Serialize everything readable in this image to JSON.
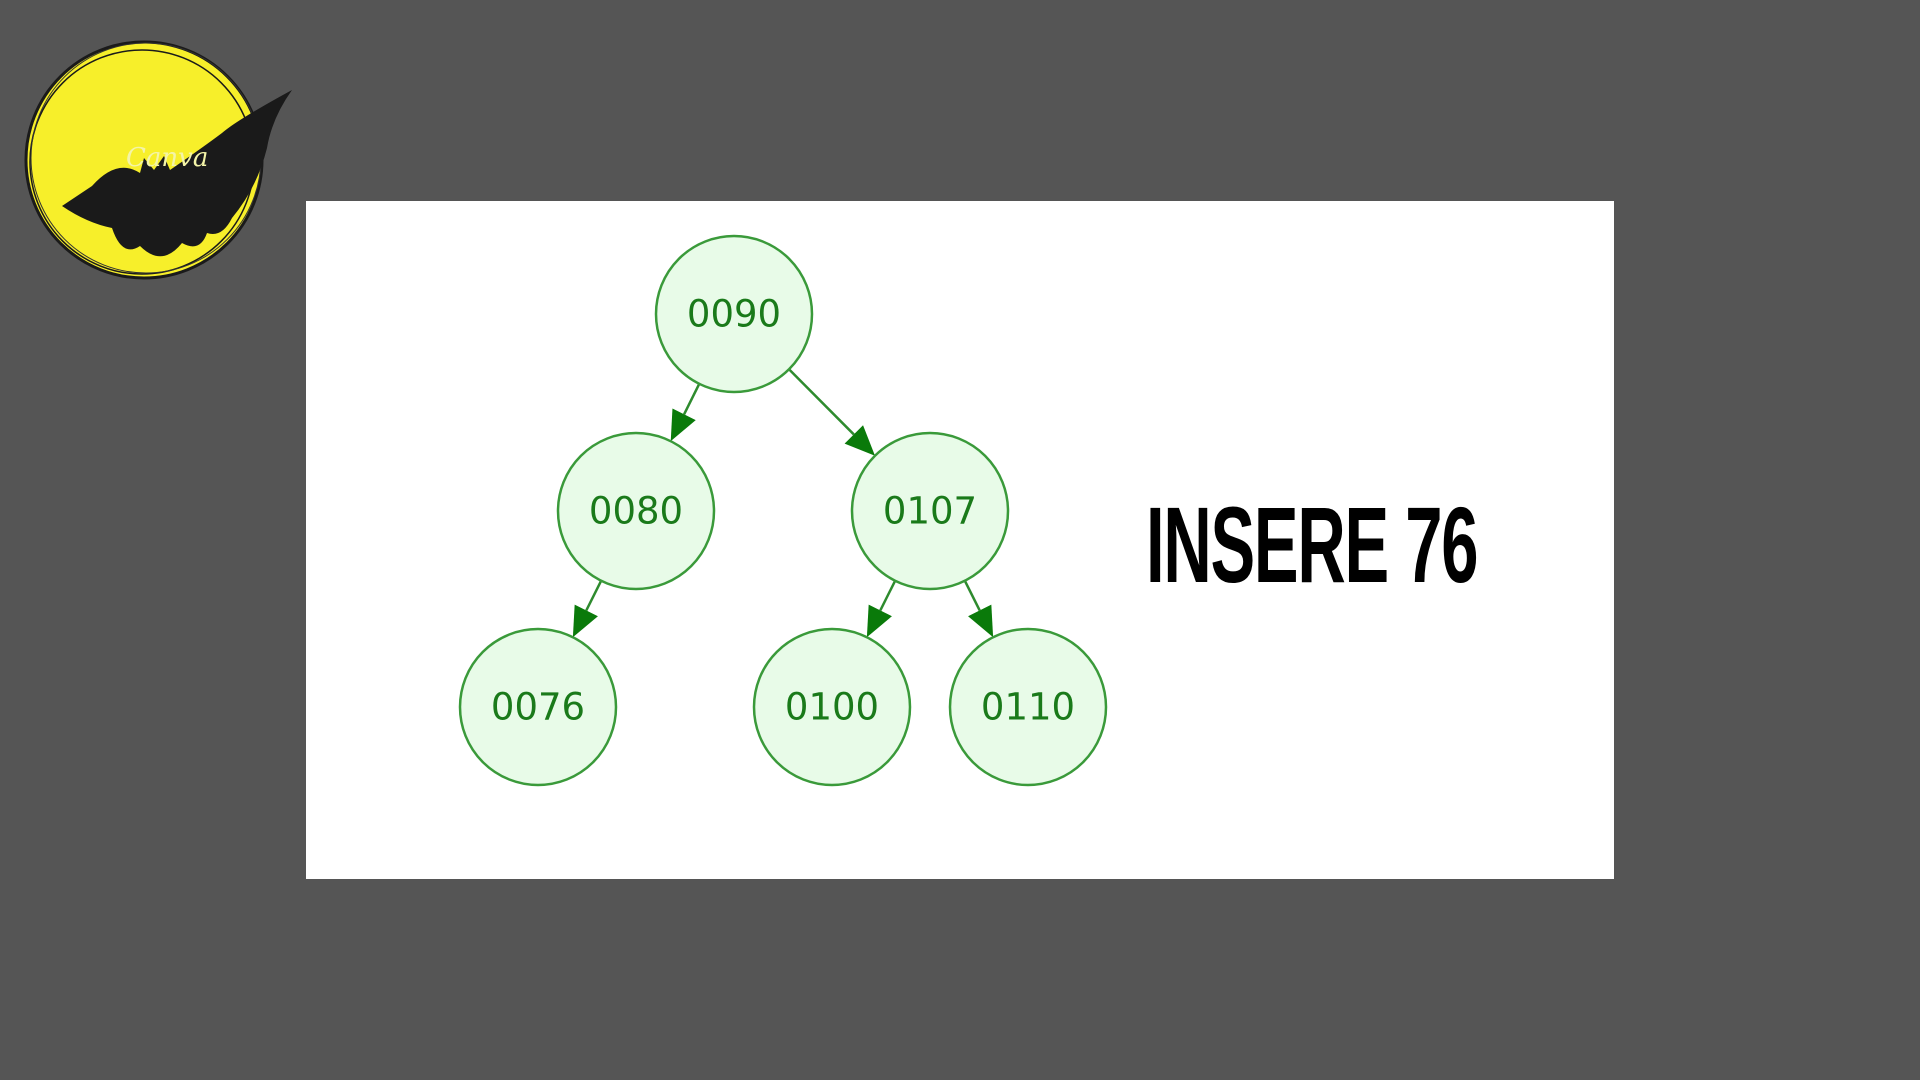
{
  "logo": {
    "text": "Canva",
    "icon": "bat-moon-logo",
    "colors": {
      "moon": "#f7ef2a",
      "bat": "#1a1a1a"
    }
  },
  "diagram": {
    "nodes": [
      {
        "id": "n90",
        "label": "0090"
      },
      {
        "id": "n80",
        "label": "0080"
      },
      {
        "id": "n107",
        "label": "0107"
      },
      {
        "id": "n76",
        "label": "0076"
      },
      {
        "id": "n100",
        "label": "0100"
      },
      {
        "id": "n110",
        "label": "0110"
      }
    ],
    "edges": [
      {
        "from": "n90",
        "to": "n80"
      },
      {
        "from": "n90",
        "to": "n107"
      },
      {
        "from": "n80",
        "to": "n76"
      },
      {
        "from": "n107",
        "to": "n100"
      },
      {
        "from": "n107",
        "to": "n110"
      }
    ],
    "colors": {
      "node_fill": "#e8fbe8",
      "node_stroke": "#3a9a3a",
      "edge": "#2e8b2e",
      "text": "#1a7a1a"
    }
  },
  "headline": "INSERE 76"
}
